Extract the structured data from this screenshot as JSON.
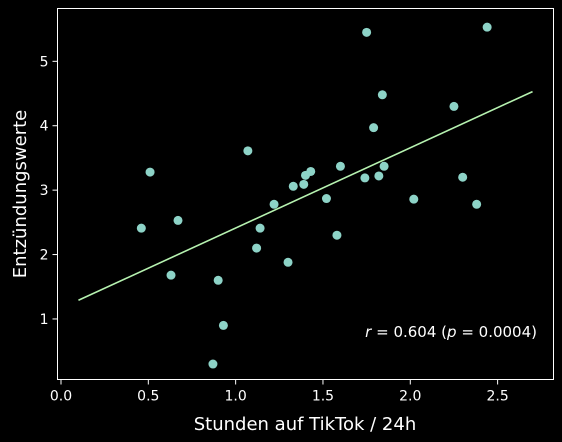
{
  "chart_data": {
    "type": "scatter",
    "xlabel": "Stunden auf TikTok / 24h",
    "ylabel": "Entzündungswerte",
    "xlim": [
      -0.02,
      2.82
    ],
    "ylim": [
      0.06,
      5.82
    ],
    "xticks": [
      0.0,
      0.5,
      1.0,
      1.5,
      2.0,
      2.5
    ],
    "xtick_labels": [
      "0.0",
      "0.5",
      "1.0",
      "1.5",
      "2.0",
      "2.5"
    ],
    "yticks": [
      1,
      2,
      3,
      4,
      5
    ],
    "ytick_labels": [
      "1",
      "2",
      "3",
      "4",
      "5"
    ],
    "grid": false,
    "background": "#000000",
    "point_color": "#8dd3c7",
    "line_color": "#b6f2b0",
    "points": [
      {
        "x": 0.46,
        "y": 2.41
      },
      {
        "x": 0.51,
        "y": 3.28
      },
      {
        "x": 0.63,
        "y": 1.68
      },
      {
        "x": 0.67,
        "y": 2.53
      },
      {
        "x": 0.87,
        "y": 0.3
      },
      {
        "x": 0.9,
        "y": 1.6
      },
      {
        "x": 0.93,
        "y": 0.9
      },
      {
        "x": 1.07,
        "y": 3.61
      },
      {
        "x": 1.12,
        "y": 2.1
      },
      {
        "x": 1.14,
        "y": 2.41
      },
      {
        "x": 1.22,
        "y": 2.78
      },
      {
        "x": 1.3,
        "y": 1.88
      },
      {
        "x": 1.33,
        "y": 3.06
      },
      {
        "x": 1.39,
        "y": 3.09
      },
      {
        "x": 1.4,
        "y": 3.23
      },
      {
        "x": 1.43,
        "y": 3.29
      },
      {
        "x": 1.52,
        "y": 2.87
      },
      {
        "x": 1.58,
        "y": 2.3
      },
      {
        "x": 1.6,
        "y": 3.37
      },
      {
        "x": 1.74,
        "y": 3.19
      },
      {
        "x": 1.75,
        "y": 5.45
      },
      {
        "x": 1.79,
        "y": 3.97
      },
      {
        "x": 1.82,
        "y": 3.22
      },
      {
        "x": 1.84,
        "y": 4.48
      },
      {
        "x": 1.85,
        "y": 3.37
      },
      {
        "x": 2.02,
        "y": 2.86
      },
      {
        "x": 2.25,
        "y": 4.3
      },
      {
        "x": 2.3,
        "y": 3.2
      },
      {
        "x": 2.38,
        "y": 2.78
      },
      {
        "x": 2.44,
        "y": 5.53
      }
    ],
    "regression_line": {
      "x": [
        0.1,
        2.7
      ],
      "y": [
        1.29,
        4.53
      ]
    },
    "annotation": {
      "r_symbol": "r",
      "r_value": " = 0.604 (",
      "p_symbol": "p",
      "p_value": " = 0.0004)"
    }
  }
}
